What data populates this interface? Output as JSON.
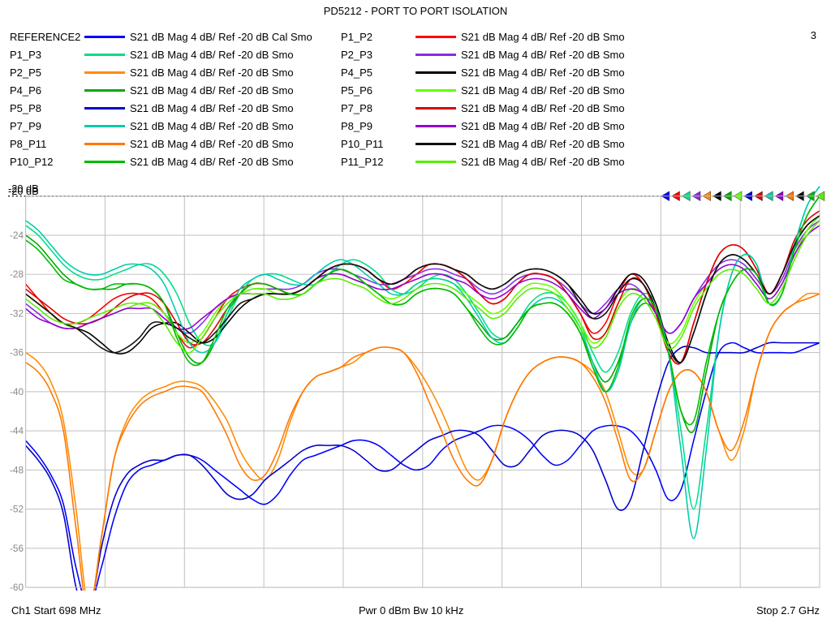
{
  "title": "PD5212 - PORT TO PORT ISOLATION",
  "page_marker": "3",
  "footer": {
    "left": "Ch1  Start  698 MHz",
    "mid": "Pwr  0 dBm  Bw  10 kHz",
    "right": "Stop  2.7 GHz"
  },
  "axis": {
    "ref_label": "-20 dB",
    "ylim": [
      -60,
      -20
    ],
    "ytick_step": 4,
    "y_labels": [
      "-24",
      "-28",
      "-32",
      "-36",
      "-40",
      "-44",
      "-48",
      "-52",
      "-56",
      "-60"
    ],
    "grid_color": "#bfbfbf",
    "dotted_ref_color": "#000000",
    "background": "#ffffff"
  },
  "traces": [
    {
      "name": "REFERENCE2",
      "color": "#0000ff",
      "meas": "S21  dB Mag  4 dB/ Ref -20 dB  Cal Smo",
      "y": [
        -45,
        -46.5,
        -48.5,
        -51.5,
        -58,
        -62,
        -58,
        -53,
        -49.5,
        -48,
        -47.5,
        -47,
        -46.5,
        -46.5,
        -47,
        -48,
        -49,
        -50,
        -51,
        -51.5,
        -50.5,
        -48.5,
        -47,
        -46.5,
        -46,
        -45.5,
        -45,
        -45,
        -45.5,
        -46.5,
        -47.5,
        -48,
        -47.5,
        -46,
        -45,
        -44.5,
        -44,
        -43.5,
        -43.5,
        -44,
        -45,
        -46.5,
        -47.5,
        -47,
        -45.5,
        -44,
        -43.5,
        -43.5,
        -44,
        -45.5,
        -48,
        -51,
        -50,
        -45,
        -40,
        -36,
        -35,
        -35.5,
        -36,
        -36,
        -36,
        -36,
        -35.5,
        -35
      ]
    },
    {
      "name": "P1_P2",
      "color": "#ff0000",
      "meas": "S21  dB Mag  4 dB/ Ref -20 dB  Smo",
      "y": [
        -29,
        -30.5,
        -32,
        -33,
        -33,
        -32.5,
        -31.5,
        -30.5,
        -30,
        -30,
        -30.5,
        -32,
        -34,
        -35.5,
        -34.5,
        -32.5,
        -30.5,
        -29.5,
        -29,
        -29,
        -29.5,
        -30,
        -29.5,
        -28.5,
        -27.5,
        -27,
        -27,
        -27.5,
        -28.5,
        -29.5,
        -29,
        -28,
        -27,
        -27,
        -27.5,
        -28.5,
        -30,
        -31,
        -30.5,
        -29,
        -28,
        -28,
        -28.5,
        -30,
        -32,
        -34,
        -33,
        -30,
        -28,
        -29,
        -32,
        -36,
        -37,
        -33,
        -29,
        -26,
        -25,
        -25.5,
        -27.5,
        -30,
        -28,
        -25,
        -23,
        -22
      ]
    },
    {
      "name": "P1_P3",
      "color": "#00dd88",
      "meas": "S21  dB Mag  4 dB/ Ref -20 dB  Smo",
      "y": [
        -23,
        -24,
        -25.5,
        -27,
        -28,
        -28.5,
        -28.5,
        -28,
        -27.5,
        -27,
        -27,
        -28,
        -30,
        -33,
        -35,
        -35,
        -32.5,
        -30,
        -28.5,
        -28,
        -28,
        -28.5,
        -29,
        -29,
        -28,
        -27,
        -26.5,
        -27,
        -28,
        -29.5,
        -30,
        -29.5,
        -28.5,
        -28,
        -28.5,
        -30,
        -32,
        -34,
        -34.5,
        -33,
        -31,
        -30,
        -30,
        -31,
        -33,
        -36,
        -38,
        -36,
        -32,
        -30,
        -31,
        -36,
        -44,
        -52,
        -44,
        -34,
        -28,
        -26,
        -27,
        -31,
        -30,
        -25,
        -21,
        -19
      ]
    },
    {
      "name": "P2_P3",
      "color": "#8a2be2",
      "meas": "S21  dB Mag  4 dB/ Ref -20 dB  Smo",
      "y": [
        -31,
        -32,
        -33,
        -33.5,
        -33.5,
        -33,
        -32.5,
        -32,
        -31.5,
        -31,
        -31,
        -32,
        -33.5,
        -34,
        -33,
        -31.5,
        -30.5,
        -30,
        -29.5,
        -29.5,
        -29.5,
        -29.5,
        -29,
        -28,
        -27.5,
        -27.5,
        -28,
        -28.5,
        -29,
        -29,
        -28.5,
        -28,
        -27.5,
        -27.5,
        -28,
        -28.5,
        -29.5,
        -30,
        -29.5,
        -28.5,
        -28,
        -28,
        -28.5,
        -29.5,
        -31,
        -32,
        -31,
        -29.5,
        -29,
        -30,
        -32,
        -34,
        -33,
        -30.5,
        -28.5,
        -27,
        -26.5,
        -27,
        -28.5,
        -30,
        -28.5,
        -25.5,
        -23.5,
        -22.5
      ]
    },
    {
      "name": "P2_P5",
      "color": "#ff8c00",
      "meas": "S21  dB Mag  4 dB/ Ref -20 dB  Smo",
      "y": [
        -36,
        -37,
        -39,
        -43,
        -52,
        -62,
        -55,
        -47,
        -43,
        -41,
        -40,
        -39.5,
        -39,
        -39,
        -39.5,
        -41,
        -43,
        -46,
        -48,
        -49,
        -47,
        -43,
        -40,
        -38.5,
        -38,
        -37.5,
        -37,
        -36,
        -35.5,
        -35.5,
        -36,
        -37.5,
        -39.5,
        -42,
        -45,
        -48,
        -49,
        -47,
        -43,
        -40,
        -38,
        -37,
        -36.5,
        -36.5,
        -37,
        -38,
        -40,
        -44,
        -48,
        -48,
        -44,
        -40,
        -38,
        -38,
        -40,
        -44,
        -47,
        -44,
        -38,
        -34,
        -32,
        -31,
        -30,
        -30
      ]
    },
    {
      "name": "P4_P5",
      "color": "#000000",
      "meas": "S21  dB Mag  4 dB/ Ref -20 dB  Smo",
      "y": [
        -30,
        -31,
        -32,
        -33,
        -33.5,
        -34,
        -35,
        -36,
        -36,
        -35,
        -33.5,
        -33,
        -33,
        -34,
        -35,
        -34.5,
        -33,
        -31.5,
        -30.5,
        -30,
        -30,
        -30,
        -29.5,
        -28.5,
        -27.5,
        -27,
        -27,
        -27.5,
        -28.5,
        -29,
        -28.5,
        -27.5,
        -27,
        -27,
        -27.5,
        -28,
        -29,
        -29.5,
        -29,
        -28,
        -27.5,
        -27.5,
        -28,
        -29,
        -30.5,
        -32,
        -31.5,
        -29.5,
        -28,
        -28.5,
        -31,
        -35,
        -37,
        -34,
        -30,
        -27,
        -26,
        -26.5,
        -28,
        -30,
        -28,
        -25,
        -23,
        -22
      ]
    },
    {
      "name": "P4_P6",
      "color": "#00aa00",
      "meas": "S21  dB Mag  4 dB/ Ref -20 dB  Smo",
      "y": [
        -24,
        -25,
        -26.5,
        -28,
        -29,
        -29.5,
        -29.5,
        -29.5,
        -29,
        -29,
        -29.5,
        -31,
        -34,
        -36.5,
        -37,
        -35,
        -32,
        -30,
        -29,
        -29,
        -29.5,
        -30,
        -30,
        -29,
        -28,
        -27.5,
        -28,
        -29,
        -30,
        -31,
        -31,
        -30,
        -29.5,
        -29.5,
        -30,
        -31.5,
        -33,
        -34.5,
        -34.5,
        -33,
        -31.5,
        -31,
        -31,
        -32,
        -34,
        -37,
        -39,
        -37,
        -33,
        -31,
        -32,
        -36,
        -42,
        -44,
        -38,
        -32,
        -29,
        -27.5,
        -28,
        -31,
        -30,
        -25.5,
        -22,
        -20
      ]
    },
    {
      "name": "P5_P6",
      "color": "#66ff00",
      "meas": "S21  dB Mag  4 dB/ Ref -20 dB  Smo",
      "y": [
        -30,
        -31,
        -32,
        -33,
        -33.5,
        -33,
        -32.5,
        -32,
        -31.5,
        -31,
        -31,
        -32,
        -34,
        -35,
        -34,
        -32,
        -30.5,
        -30,
        -29.5,
        -29.5,
        -30,
        -30,
        -29.5,
        -28.5,
        -28,
        -28,
        -28.5,
        -29,
        -30,
        -30.5,
        -30,
        -29,
        -28.5,
        -28.5,
        -29,
        -30,
        -31,
        -32,
        -31.5,
        -30,
        -29,
        -29,
        -29.5,
        -31,
        -33,
        -35,
        -34,
        -31,
        -29.5,
        -30,
        -32,
        -35,
        -34,
        -31,
        -29,
        -27.5,
        -27,
        -27.5,
        -29,
        -30.5,
        -29,
        -26,
        -23.5,
        -22
      ]
    },
    {
      "name": "P5_P8",
      "color": "#0000cc",
      "meas": "S21  dB Mag  4 dB/ Ref -20 dB  Smo",
      "y": [
        -45.5,
        -47,
        -49,
        -52.5,
        -60,
        -63,
        -56,
        -51,
        -48.5,
        -47.5,
        -47,
        -47,
        -46.5,
        -46.5,
        -47.5,
        -49,
        -50.5,
        -51,
        -50.5,
        -49,
        -48,
        -47,
        -46,
        -45.5,
        -45.5,
        -45.5,
        -46,
        -47,
        -48,
        -48,
        -47,
        -46,
        -45,
        -44.5,
        -44,
        -44,
        -44.5,
        -46,
        -47.5,
        -47.5,
        -46,
        -44.5,
        -44,
        -44,
        -44.5,
        -46,
        -49,
        -52,
        -51,
        -46,
        -41,
        -37,
        -35.5,
        -35.5,
        -36,
        -36,
        -36,
        -36,
        -35.5,
        -35,
        -35,
        -35,
        -35,
        -35
      ]
    },
    {
      "name": "P7_P8",
      "color": "#dd0000",
      "meas": "S21  dB Mag  4 dB/ Ref -20 dB  Smo",
      "y": [
        -29.5,
        -30.5,
        -31.5,
        -32.5,
        -33,
        -33,
        -32.5,
        -31.5,
        -30.5,
        -30,
        -30,
        -31,
        -33,
        -35,
        -35,
        -33.5,
        -31.5,
        -30,
        -29,
        -29,
        -29.5,
        -30,
        -29.5,
        -28.5,
        -27.5,
        -27,
        -27,
        -27.5,
        -28.5,
        -29,
        -28.5,
        -27.5,
        -27,
        -27,
        -27.5,
        -28.5,
        -30,
        -31,
        -30.5,
        -29,
        -28,
        -28,
        -28.5,
        -30,
        -32,
        -34.5,
        -34,
        -31,
        -28.5,
        -29,
        -32,
        -36,
        -37,
        -33,
        -29,
        -26,
        -25,
        -25.5,
        -27.5,
        -30,
        -28,
        -24.5,
        -22.5,
        -21.5
      ]
    },
    {
      "name": "P7_P9",
      "color": "#00ccaa",
      "meas": "S21  dB Mag  4 dB/ Ref -20 dB  Smo",
      "y": [
        -22.5,
        -23.5,
        -25,
        -26.5,
        -27.5,
        -28,
        -28,
        -27.5,
        -27,
        -27,
        -27.5,
        -29,
        -32,
        -35,
        -36,
        -35,
        -32,
        -29.5,
        -28.5,
        -28,
        -28.5,
        -29,
        -29,
        -28,
        -27,
        -26.5,
        -27,
        -28,
        -29,
        -30,
        -30,
        -29,
        -28.5,
        -28.5,
        -29,
        -30.5,
        -32.5,
        -34.5,
        -35,
        -33.5,
        -31.5,
        -30.5,
        -30.5,
        -31.5,
        -33.5,
        -37,
        -40,
        -38,
        -33,
        -30.5,
        -31.5,
        -36,
        -46,
        -55,
        -46,
        -34,
        -28,
        -26,
        -27,
        -31,
        -30,
        -25,
        -21,
        -19
      ]
    },
    {
      "name": "P8_P9",
      "color": "#9400d3",
      "meas": "S21  dB Mag  4 dB/ Ref -20 dB  Smo",
      "y": [
        -31.5,
        -32.5,
        -33,
        -33.5,
        -33.5,
        -33,
        -32.5,
        -32,
        -31.5,
        -31.5,
        -31.5,
        -32.5,
        -33.5,
        -33.5,
        -32.5,
        -31.5,
        -30.5,
        -30,
        -30,
        -30,
        -30,
        -30,
        -29.5,
        -28.5,
        -28,
        -28,
        -28.5,
        -29,
        -29.5,
        -29.5,
        -29,
        -28.5,
        -28,
        -28,
        -28.5,
        -29,
        -30,
        -30.5,
        -30,
        -29,
        -28.5,
        -28.5,
        -29,
        -30,
        -31.5,
        -32.5,
        -31.5,
        -30,
        -29.5,
        -30,
        -32,
        -34,
        -33,
        -30.5,
        -29,
        -27.5,
        -27,
        -27.5,
        -29,
        -30.5,
        -29,
        -26,
        -24,
        -23
      ]
    },
    {
      "name": "P8_P11",
      "color": "#ff7700",
      "meas": "S21  dB Mag  4 dB/ Ref -20 dB  Smo",
      "y": [
        -37,
        -38,
        -40,
        -44,
        -54,
        -63,
        -55,
        -47,
        -43.5,
        -41.5,
        -40.5,
        -40,
        -39.5,
        -39.5,
        -40,
        -42,
        -44.5,
        -47.5,
        -49,
        -48.5,
        -46,
        -42.5,
        -40,
        -38.5,
        -38,
        -37.5,
        -36.5,
        -36,
        -35.5,
        -35.5,
        -36,
        -38,
        -41,
        -44,
        -47,
        -49,
        -49.5,
        -47,
        -43,
        -40,
        -38,
        -37,
        -36.5,
        -36.5,
        -37,
        -38.5,
        -41,
        -45,
        -49,
        -48,
        -44,
        -40,
        -38,
        -38,
        -40,
        -44,
        -46,
        -43,
        -38,
        -34,
        -32,
        -31,
        -30.5,
        -30
      ]
    },
    {
      "name": "P10_P11",
      "color": "#111111",
      "meas": "S21  dB Mag  4 dB/ Ref -20 dB  Smo",
      "y": [
        -30,
        -31,
        -32,
        -33,
        -33.5,
        -34.5,
        -35.5,
        -36,
        -35.5,
        -34.5,
        -33,
        -33,
        -33.5,
        -34.5,
        -35,
        -34,
        -32.5,
        -31,
        -30.5,
        -30,
        -30,
        -30,
        -29.5,
        -28.5,
        -27.5,
        -27,
        -27,
        -27.5,
        -28.5,
        -29,
        -28.5,
        -27.5,
        -27,
        -27,
        -27.5,
        -28,
        -29,
        -29.5,
        -29,
        -28,
        -27.5,
        -27.5,
        -28,
        -29,
        -31,
        -32.5,
        -32,
        -30,
        -28.5,
        -29,
        -31.5,
        -35.5,
        -37,
        -34,
        -30,
        -27,
        -26,
        -26.5,
        -28,
        -30,
        -28,
        -25,
        -23,
        -22
      ]
    },
    {
      "name": "P10_P12",
      "color": "#00bb00",
      "meas": "S21  dB Mag  4 dB/ Ref -20 dB  Smo",
      "y": [
        -24.5,
        -25.5,
        -27,
        -28.5,
        -29,
        -29.5,
        -29.5,
        -29,
        -29,
        -29,
        -29.5,
        -31,
        -34.5,
        -37,
        -37,
        -34.5,
        -31.5,
        -30,
        -29,
        -29,
        -29.5,
        -30,
        -30,
        -29,
        -28,
        -27.5,
        -28,
        -29,
        -30,
        -31,
        -31,
        -30,
        -29.5,
        -29.5,
        -30,
        -31.5,
        -33.5,
        -35,
        -35,
        -33.5,
        -31.5,
        -31,
        -31,
        -32,
        -34,
        -37.5,
        -40,
        -37.5,
        -32.5,
        -30.5,
        -31.5,
        -36,
        -42,
        -43,
        -37,
        -32,
        -29,
        -27.5,
        -28,
        -31,
        -30,
        -25.5,
        -22,
        -20
      ]
    },
    {
      "name": "P11_P12",
      "color": "#55ee00",
      "meas": "S21  dB Mag  4 dB/ Ref -20 dB  Smo",
      "y": [
        -30.5,
        -31.5,
        -32.5,
        -33,
        -33,
        -32.5,
        -32,
        -31.5,
        -31,
        -31,
        -31.5,
        -33,
        -35,
        -36,
        -34.5,
        -32.5,
        -31,
        -30,
        -30,
        -30,
        -30.5,
        -30.5,
        -30,
        -29,
        -28.5,
        -28.5,
        -29,
        -29.5,
        -30.5,
        -31,
        -30.5,
        -29.5,
        -29,
        -29,
        -29.5,
        -30.5,
        -31.5,
        -32.5,
        -32,
        -30.5,
        -29.5,
        -29.5,
        -30,
        -31.5,
        -33.5,
        -35.5,
        -34.5,
        -31.5,
        -30,
        -30.5,
        -32.5,
        -35.5,
        -34.5,
        -31.5,
        -29.5,
        -28,
        -27.5,
        -28,
        -29.5,
        -31,
        -29.5,
        -26.5,
        -24,
        -22.5
      ]
    }
  ],
  "marker_colors": [
    "#0000ff",
    "#ff0000",
    "#00dd88",
    "#8a2be2",
    "#ff8c00",
    "#000000",
    "#00aa00",
    "#66ff00",
    "#0000cc",
    "#dd0000",
    "#00ccaa",
    "#9400d3",
    "#ff7700",
    "#111111",
    "#00bb00",
    "#55ee00"
  ],
  "legend_line_width": 3,
  "trace_line_width": 1.6
}
